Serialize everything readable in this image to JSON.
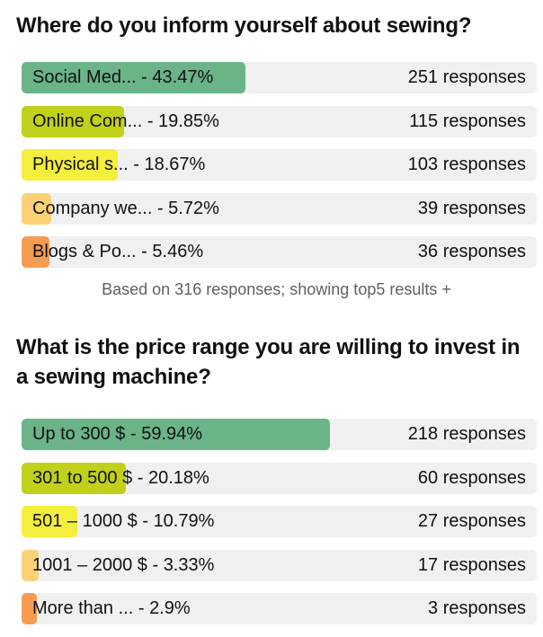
{
  "chart_data": [
    {
      "type": "bar",
      "title": "Where do you inform yourself about sewing?",
      "categories": [
        "Social Med...",
        "Online Com...",
        "Physical s...",
        "Company we...",
        "Blogs & Po..."
      ],
      "values": [
        43.47,
        19.85,
        18.67,
        5.72,
        5.46
      ],
      "value_labels": [
        "43.47%",
        "19.85%",
        "18.67%",
        "5.72%",
        "5.46%"
      ],
      "counts": [
        "251 responses",
        "115 responses",
        "103 responses",
        "39 responses",
        "36 responses"
      ],
      "colors": [
        "#6ab488",
        "#c1d11a",
        "#f4ee3c",
        "#fbd177",
        "#f69c52"
      ],
      "footer": "Based on 316 responses; showing top5 results +",
      "xlim": [
        0,
        100
      ]
    },
    {
      "type": "bar",
      "title": "What is the price range you are willing to invest in a sewing machine?",
      "categories": [
        "Up to 300 $",
        "301 to 500 $",
        "501 – 1000 $",
        "1001 – 2000 $",
        "More than ..."
      ],
      "values": [
        59.94,
        20.18,
        10.79,
        3.33,
        2.9
      ],
      "value_labels": [
        "59.94%",
        "20.18%",
        "10.79%",
        "3.33%",
        "2.9%"
      ],
      "counts": [
        "218 responses",
        "60 responses",
        "27 responses",
        "17 responses",
        "3 responses"
      ],
      "colors": [
        "#6ab488",
        "#c1d11a",
        "#f4ee3c",
        "#fbd177",
        "#f69c52"
      ],
      "xlim": [
        0,
        100
      ]
    }
  ]
}
